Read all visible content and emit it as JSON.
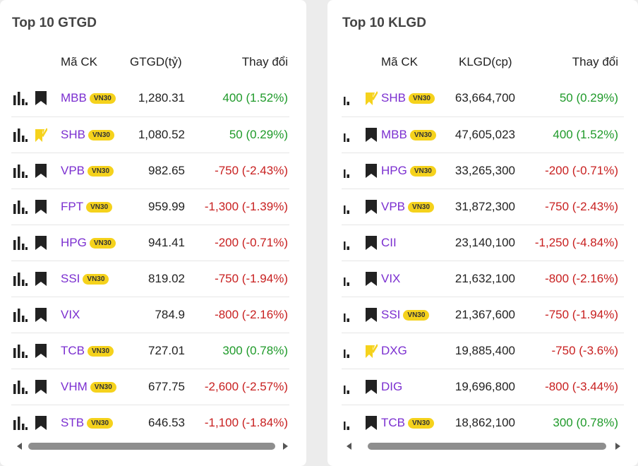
{
  "colors": {
    "symbol": "#7b2fd0",
    "up": "#1f9a2a",
    "down": "#c82020",
    "badge": "#f5d21c"
  },
  "gtgd": {
    "title": "Top 10 GTGD",
    "col_symbol": "Mã CK",
    "col_value": "GTGD(tỷ)",
    "col_change": "Thay đổi",
    "rows": [
      {
        "symbol": "MBB",
        "badge": "VN30",
        "value": "1,280.31",
        "change": "400 (1.52%)",
        "dir": "up",
        "mark": "bookmark"
      },
      {
        "symbol": "SHB",
        "badge": "VN30",
        "value": "1,080.52",
        "change": "50 (0.29%)",
        "dir": "up",
        "mark": "bookmark-checked"
      },
      {
        "symbol": "VPB",
        "badge": "VN30",
        "value": "982.65",
        "change": "-750 (-2.43%)",
        "dir": "down",
        "mark": "bookmark"
      },
      {
        "symbol": "FPT",
        "badge": "VN30",
        "value": "959.99",
        "change": "-1,300 (-1.39%)",
        "dir": "down",
        "mark": "bookmark"
      },
      {
        "symbol": "HPG",
        "badge": "VN30",
        "value": "941.41",
        "change": "-200 (-0.71%)",
        "dir": "down",
        "mark": "bookmark"
      },
      {
        "symbol": "SSI",
        "badge": "VN30",
        "value": "819.02",
        "change": "-750 (-1.94%)",
        "dir": "down",
        "mark": "bookmark"
      },
      {
        "symbol": "VIX",
        "badge": "",
        "value": "784.9",
        "change": "-800 (-2.16%)",
        "dir": "down",
        "mark": "bookmark"
      },
      {
        "symbol": "TCB",
        "badge": "VN30",
        "value": "727.01",
        "change": "300 (0.78%)",
        "dir": "up",
        "mark": "bookmark"
      },
      {
        "symbol": "VHM",
        "badge": "VN30",
        "value": "677.75",
        "change": "-2,600 (-2.57%)",
        "dir": "down",
        "mark": "bookmark"
      },
      {
        "symbol": "STB",
        "badge": "VN30",
        "value": "646.53",
        "change": "-1,100 (-1.84%)",
        "dir": "down",
        "mark": "bookmark"
      }
    ]
  },
  "klgd": {
    "title": "Top 10 KLGD",
    "col_symbol": "Mã CK",
    "col_value": "KLGD(cp)",
    "col_change": "Thay đổi",
    "rows": [
      {
        "symbol": "SHB",
        "badge": "VN30",
        "value": "63,664,700",
        "change": "50 (0.29%)",
        "dir": "up",
        "mark": "bookmark-checked"
      },
      {
        "symbol": "MBB",
        "badge": "VN30",
        "value": "47,605,023",
        "change": "400 (1.52%)",
        "dir": "up",
        "mark": "bookmark"
      },
      {
        "symbol": "HPG",
        "badge": "VN30",
        "value": "33,265,300",
        "change": "-200 (-0.71%)",
        "dir": "down",
        "mark": "bookmark"
      },
      {
        "symbol": "VPB",
        "badge": "VN30",
        "value": "31,872,300",
        "change": "-750 (-2.43%)",
        "dir": "down",
        "mark": "bookmark"
      },
      {
        "symbol": "CII",
        "badge": "",
        "value": "23,140,100",
        "change": "-1,250 (-4.84%)",
        "dir": "down",
        "mark": "bookmark"
      },
      {
        "symbol": "VIX",
        "badge": "",
        "value": "21,632,100",
        "change": "-800 (-2.16%)",
        "dir": "down",
        "mark": "bookmark"
      },
      {
        "symbol": "SSI",
        "badge": "VN30",
        "value": "21,367,600",
        "change": "-750 (-1.94%)",
        "dir": "down",
        "mark": "bookmark"
      },
      {
        "symbol": "DXG",
        "badge": "",
        "value": "19,885,400",
        "change": "-750 (-3.6%)",
        "dir": "down",
        "mark": "bookmark-checked"
      },
      {
        "symbol": "DIG",
        "badge": "",
        "value": "19,696,800",
        "change": "-800 (-3.44%)",
        "dir": "down",
        "mark": "bookmark"
      },
      {
        "symbol": "TCB",
        "badge": "VN30",
        "value": "18,862,100",
        "change": "300 (0.78%)",
        "dir": "up",
        "mark": "bookmark"
      }
    ]
  }
}
